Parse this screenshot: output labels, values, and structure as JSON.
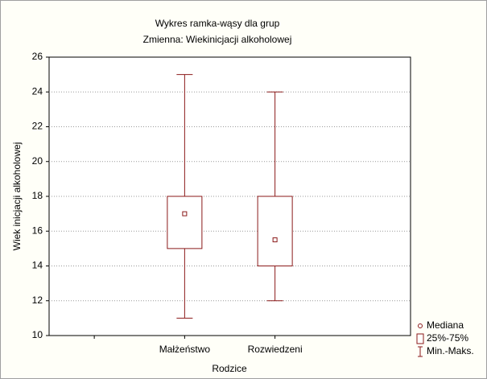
{
  "chart_data": {
    "type": "box",
    "title": "Wykres ramka-wąsy dla grup",
    "subtitle": "Zmienna:  Wiekinicjacji alkoholowej",
    "x_label": "Rodzice",
    "y_label": "Wiek inicjacji alkoholowej",
    "categories": [
      "Małżeństwo",
      "Rozwiedzeni"
    ],
    "boxes": [
      {
        "median": 17,
        "q1": 15,
        "q3": 18,
        "min": 11,
        "max": 25
      },
      {
        "median": 15.5,
        "q1": 14,
        "q3": 18,
        "min": 12,
        "max": 24
      }
    ],
    "color": "#8b1a1a",
    "ylim": [
      10,
      26
    ],
    "yticks": [
      10,
      12,
      14,
      16,
      18,
      20,
      22,
      24,
      26
    ],
    "grid": true,
    "legend": [
      "Mediana",
      "25%-75%",
      "Min.-Maks."
    ]
  }
}
